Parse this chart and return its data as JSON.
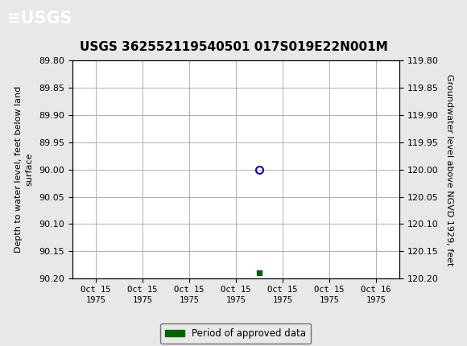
{
  "title": "USGS 362552119540501 017S019E22N001M",
  "title_fontsize": 11,
  "header_color": "#1a6b3c",
  "background_color": "#e8e8e8",
  "plot_bg_color": "#ffffff",
  "grid_color": "#b0b0b0",
  "left_ylabel": "Depth to water level, feet below land\nsurface",
  "right_ylabel": "Groundwater level above NGVD 1929, feet",
  "ylim_left": [
    89.8,
    90.2
  ],
  "ylim_right": [
    119.8,
    120.2
  ],
  "yticks_left": [
    89.8,
    89.85,
    89.9,
    89.95,
    90.0,
    90.05,
    90.1,
    90.15,
    90.2
  ],
  "yticks_right": [
    119.8,
    119.85,
    119.9,
    119.95,
    120.0,
    120.05,
    120.1,
    120.15,
    120.2
  ],
  "circle_point_x": 3.5,
  "circle_point_y": 90.0,
  "square_point_x": 3.5,
  "square_point_y": 90.19,
  "circle_color": "#0000cc",
  "square_color": "#006400",
  "legend_label": "Period of approved data",
  "legend_color": "#006400",
  "xlabel_ticks": [
    "Oct 15\n1975",
    "Oct 15\n1975",
    "Oct 15\n1975",
    "Oct 15\n1975",
    "Oct 15\n1975",
    "Oct 15\n1975",
    "Oct 16\n1975"
  ],
  "xtick_positions": [
    0,
    1,
    2,
    3,
    4,
    5,
    6
  ],
  "xlim": [
    -0.5,
    6.5
  ]
}
